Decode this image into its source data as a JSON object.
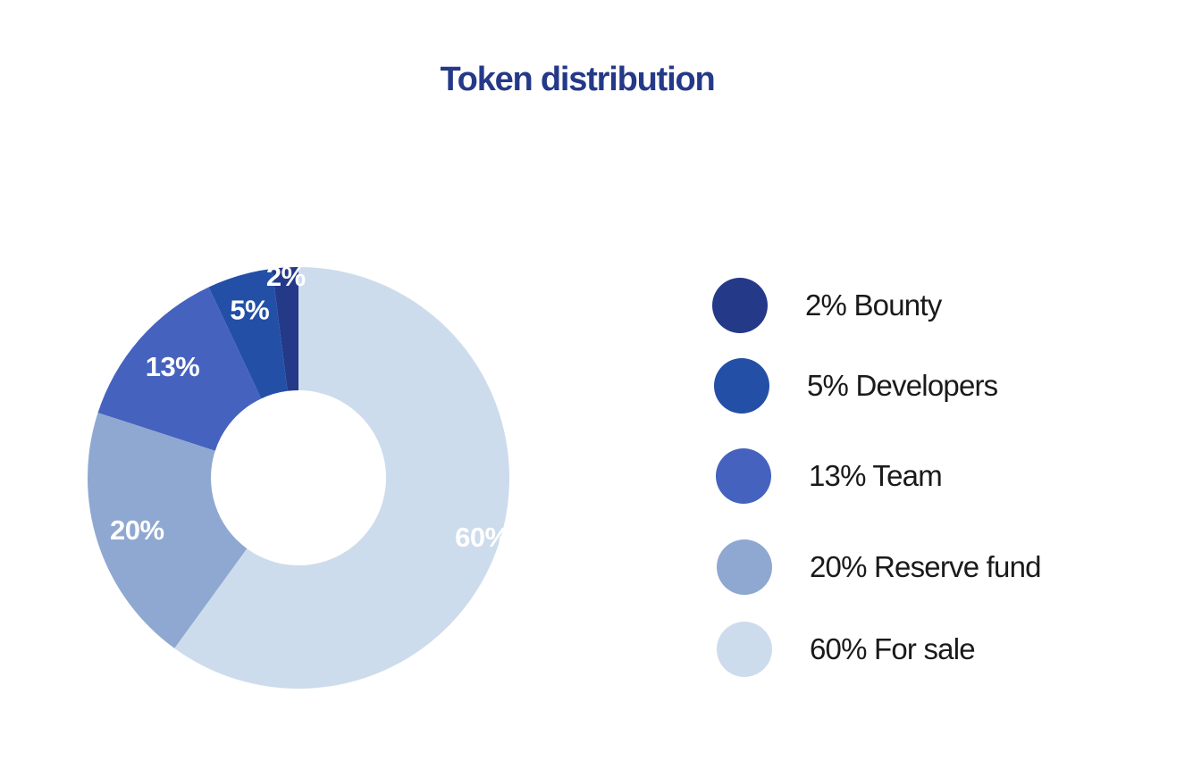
{
  "chart_data": {
    "type": "pie",
    "title": "Token distribution",
    "categories": [
      "Bounty",
      "Developers",
      "Team",
      "Reserve fund",
      "For sale"
    ],
    "values": [
      2,
      5,
      13,
      20,
      60
    ],
    "slice_labels": [
      "2%",
      "5%",
      "13%",
      "20%",
      "60%"
    ],
    "legend": [
      {
        "label": "2% Bounty",
        "color": "#253989"
      },
      {
        "label": "5% Developers",
        "color": "#2350a6"
      },
      {
        "label": "13% Team",
        "color": "#4562be"
      },
      {
        "label": "20% Reserve fund",
        "color": "#8fa8d1"
      },
      {
        "label": "60% For sale",
        "color": "#cddcec"
      }
    ],
    "legend_position": "right"
  }
}
